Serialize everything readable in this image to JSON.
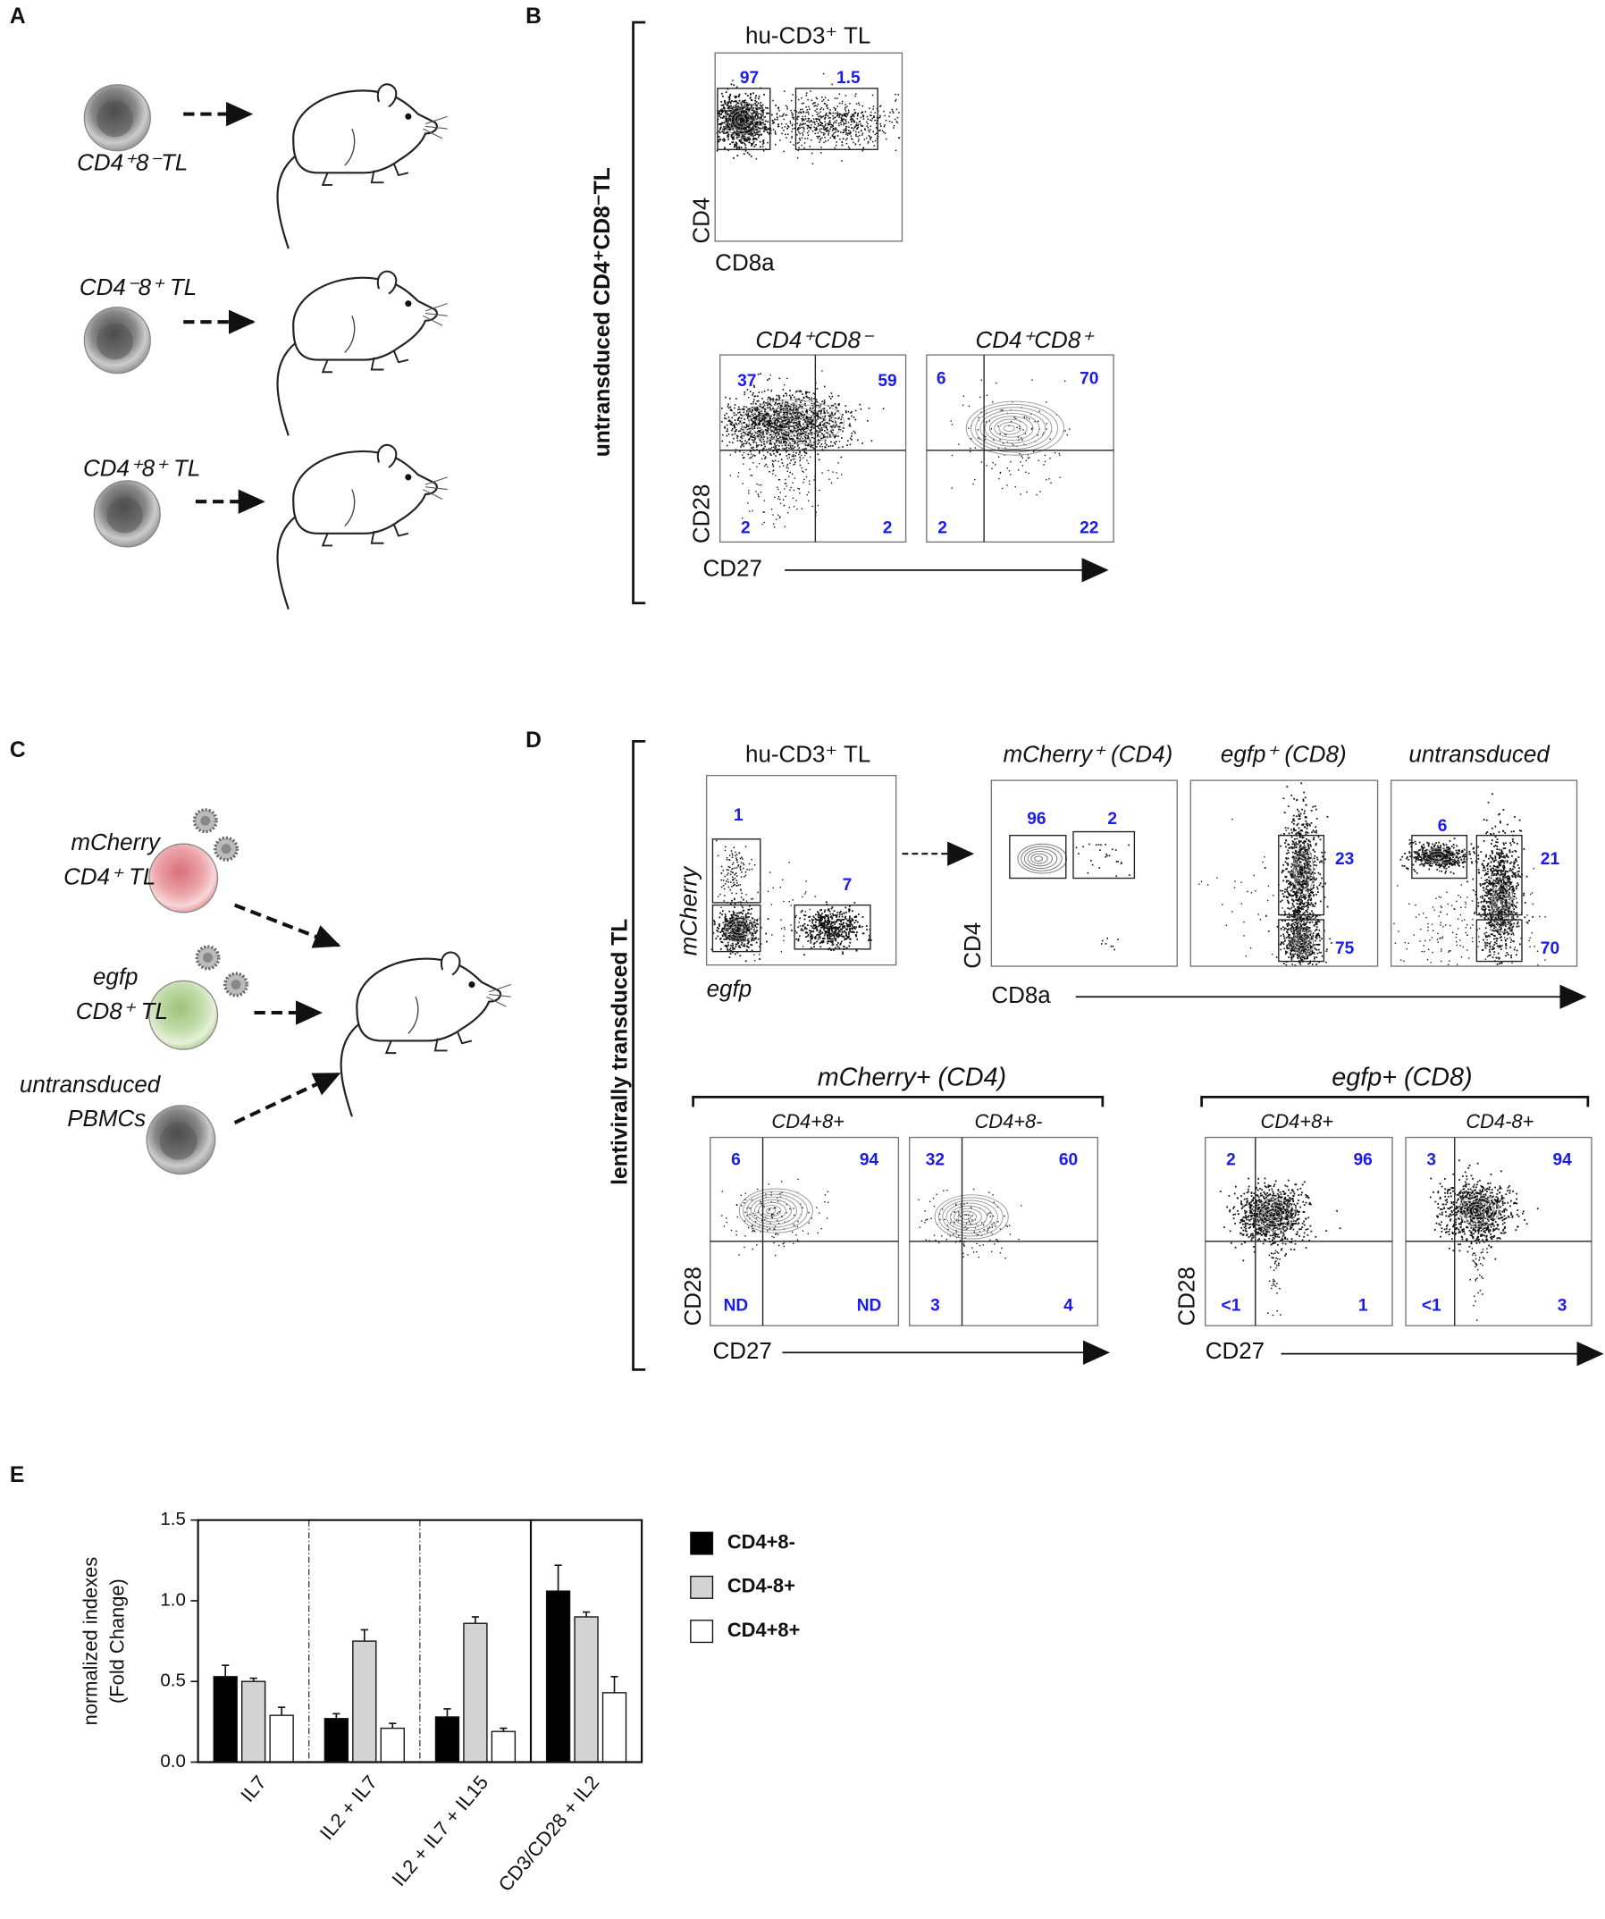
{
  "panels": {
    "A": {
      "label": "A",
      "cells": [
        "CD4⁺8⁻TL",
        "CD4⁻8⁺ TL",
        "CD4⁺8⁺ TL"
      ]
    },
    "B": {
      "label": "B",
      "side_label": "untransduced CD4⁺CD8⁻TL",
      "plots": [
        {
          "title": "hu-CD3⁺ TL",
          "x_label": "CD8a",
          "y_label": "CD4",
          "gates": [
            97,
            1.5
          ]
        },
        {
          "title": "CD4⁺CD8⁻",
          "gates": [
            37,
            59,
            2,
            2
          ]
        },
        {
          "title": "CD4⁺CD8⁺",
          "gates": [
            6,
            70,
            2,
            22
          ]
        }
      ],
      "x_label": "CD27",
      "y_label": "CD28"
    },
    "C": {
      "label": "C",
      "cells": [
        [
          "mCherry",
          "CD4⁺ TL"
        ],
        [
          "egfp",
          "CD8⁺ TL"
        ],
        [
          "untransduced",
          "PBMCs"
        ]
      ]
    },
    "D": {
      "label": "D",
      "side_label": "lentivirally transduced TL",
      "sort_plot": {
        "title": "hu-CD3⁺ TL",
        "x_label": "egfp",
        "y_label": "mCherry",
        "gates": [
          1,
          7
        ]
      },
      "gated_plots": [
        {
          "title": "mCherry⁺ (CD4)",
          "gates": [
            96,
            2
          ]
        },
        {
          "title": "egfp⁺ (CD8)",
          "gates": [
            23,
            75
          ]
        },
        {
          "title": "untransduced",
          "gates": [
            6,
            21,
            70
          ]
        }
      ],
      "gated_x_label": "CD8a",
      "gated_y_label": "CD4",
      "groups": [
        {
          "title": "mCherry+ (CD4)",
          "x_label": "CD27",
          "y_label": "CD28",
          "plots": [
            {
              "title": "CD4+8+",
              "gates": [
                6,
                94,
                "ND",
                "ND"
              ]
            },
            {
              "title": "CD4+8-",
              "gates": [
                32,
                60,
                3,
                4
              ]
            }
          ]
        },
        {
          "title": "egfp+ (CD8)",
          "x_label": "CD27",
          "y_label": "CD28",
          "plots": [
            {
              "title": "CD4+8+",
              "gates": [
                2,
                96,
                "<1",
                1
              ]
            },
            {
              "title": "CD4-8+",
              "gates": [
                3,
                94,
                "<1",
                3
              ]
            }
          ]
        }
      ]
    },
    "E": {
      "label": "E"
    }
  },
  "chart_data": {
    "type": "bar",
    "ylabel": [
      "normalized indexes",
      "(Fold Change)"
    ],
    "categories": [
      "IL7",
      "IL2 + IL7",
      "IL2 + IL7 + IL15",
      "CD3/CD28 + IL2"
    ],
    "series": [
      {
        "name": "CD4+8-",
        "color": "#000000",
        "values": [
          0.53,
          0.27,
          0.28,
          1.06
        ],
        "errors": [
          0.07,
          0.03,
          0.05,
          0.16
        ]
      },
      {
        "name": "CD4-8+",
        "color": "#d3d3d3",
        "values": [
          0.5,
          0.75,
          0.86,
          0.9
        ],
        "errors": [
          0.02,
          0.07,
          0.04,
          0.03
        ]
      },
      {
        "name": "CD4+8+",
        "color": "#ffffff",
        "values": [
          0.29,
          0.21,
          0.19,
          0.43
        ],
        "errors": [
          0.05,
          0.03,
          0.02,
          0.1
        ]
      }
    ],
    "ylim": [
      0,
      1.5
    ],
    "yticks": [
      {
        "value": 0,
        "label": "0.0"
      },
      0.5,
      {
        "value": 1,
        "label": "1.0"
      },
      1.5
    ],
    "legend": "right"
  }
}
